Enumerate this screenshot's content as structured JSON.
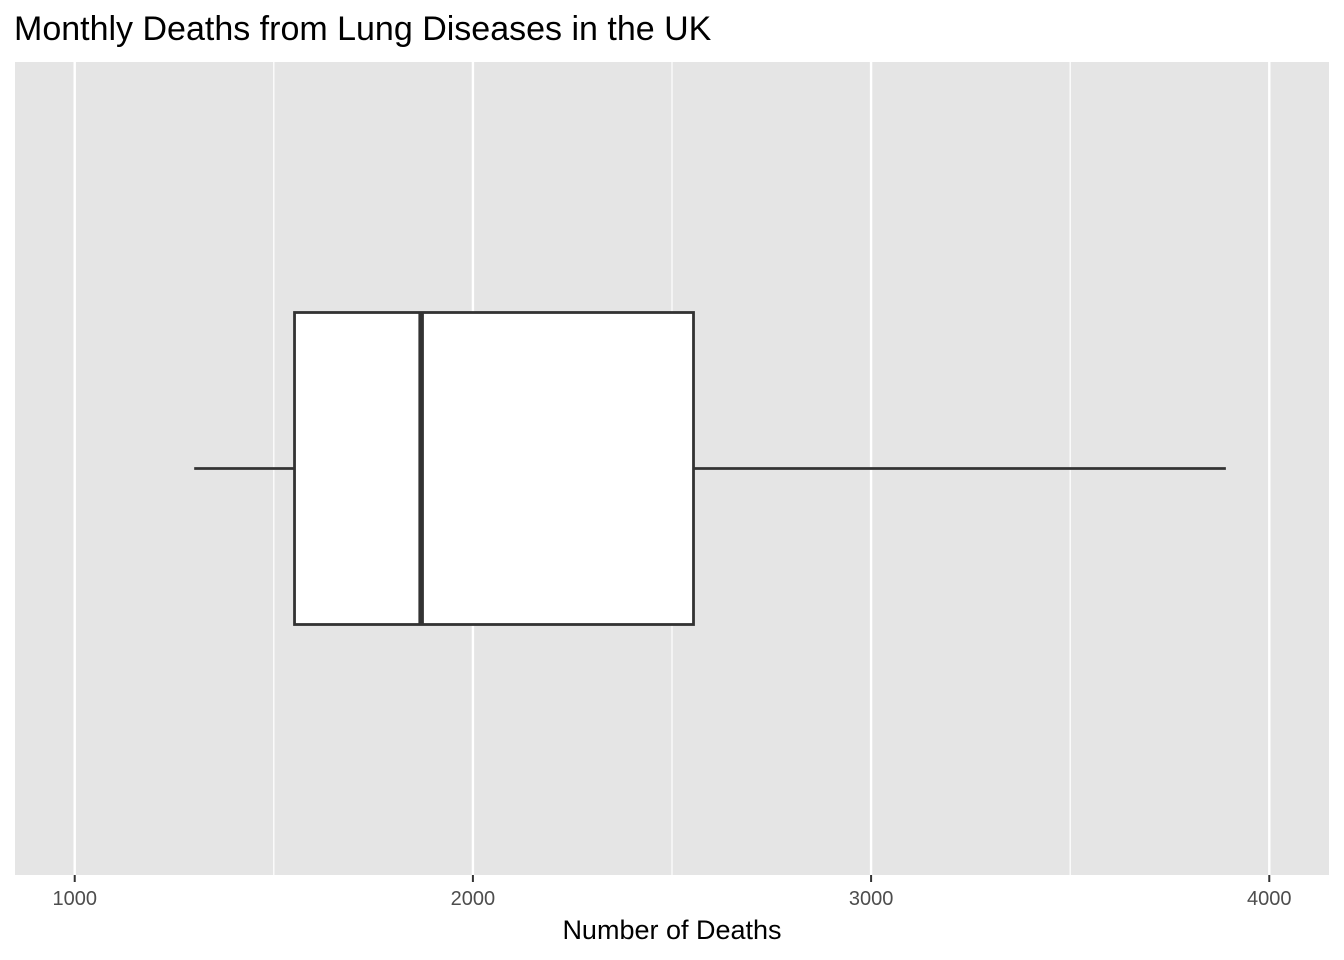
{
  "chart_data": {
    "type": "boxplot",
    "orientation": "horizontal",
    "title": "Monthly Deaths from Lung Diseases in the UK",
    "xlabel": "Number of Deaths",
    "ylabel": "",
    "xlim": [
      850,
      4150
    ],
    "x_ticks": [
      1000,
      2000,
      3000,
      4000
    ],
    "x_tick_labels": [
      "1000",
      "2000",
      "3000",
      "4000"
    ],
    "x_minor_ticks": [
      1500,
      2500,
      3500
    ],
    "grid": true,
    "box": {
      "whisker_low": 1300,
      "q1": 1552,
      "median": 1870,
      "q3": 2554,
      "whisker_high": 3891
    },
    "colors": {
      "panel_background": "#e5e5e5",
      "grid": "#ffffff",
      "box_fill": "#ffffff",
      "box_stroke": "#333333"
    }
  }
}
